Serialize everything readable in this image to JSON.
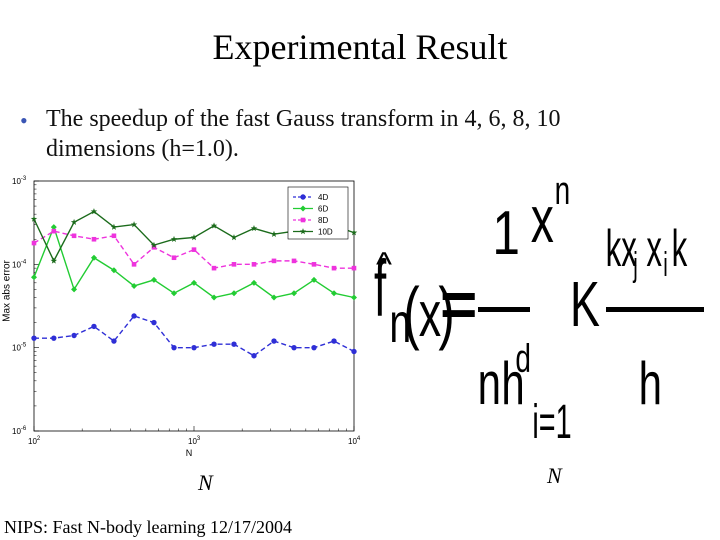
{
  "title": "Experimental Result",
  "bullet": {
    "line1": "The speedup of the fast Gauss transform in 4, 6, 8, 10",
    "line2": "dimensions (h=1.0)."
  },
  "chart_data": {
    "type": "line",
    "ylabel": "Max abs error",
    "xlabel": "N",
    "x_scale": "log",
    "y_scale": "log",
    "xlim": [
      100,
      10000
    ],
    "ylim": [
      1e-06,
      0.001
    ],
    "x_ticks": [
      {
        "base": "10",
        "exp": "2"
      },
      {
        "base": "10",
        "exp": "3"
      },
      {
        "base": "10",
        "exp": "4"
      }
    ],
    "y_ticks": [
      {
        "base": "10",
        "exp": "-3"
      },
      {
        "base": "10",
        "exp": "-4"
      },
      {
        "base": "10",
        "exp": "-5"
      },
      {
        "base": "10",
        "exp": "-6"
      }
    ],
    "legend_position": "top-right",
    "x": [
      100,
      133,
      178,
      237,
      316,
      422,
      562,
      750,
      1000,
      1334,
      1778,
      2371,
      3162,
      4217,
      5623,
      7499,
      10000
    ],
    "series": [
      {
        "name": "4D",
        "color": "#2f2fd6",
        "marker": "circle",
        "dash": "5,3",
        "values": [
          1.3e-05,
          1.3e-05,
          1.4e-05,
          1.8e-05,
          1.2e-05,
          2.4e-05,
          2e-05,
          1e-05,
          1e-05,
          1.1e-05,
          1.1e-05,
          8e-06,
          1.2e-05,
          1e-05,
          1e-05,
          1.2e-05,
          9e-06
        ]
      },
      {
        "name": "6D",
        "color": "#22cc33",
        "marker": "diamond",
        "dash": "",
        "values": [
          7e-05,
          0.00028,
          5e-05,
          0.00012,
          8.5e-05,
          5.5e-05,
          6.5e-05,
          4.5e-05,
          6e-05,
          4e-05,
          4.5e-05,
          6e-05,
          4e-05,
          4.5e-05,
          6.5e-05,
          4.5e-05,
          4e-05
        ]
      },
      {
        "name": "8D",
        "color": "#ee33dd",
        "marker": "square",
        "dash": "5,3",
        "values": [
          0.00018,
          0.00025,
          0.00022,
          0.0002,
          0.00022,
          0.0001,
          0.00016,
          0.00012,
          0.00015,
          9e-05,
          0.0001,
          0.0001,
          0.00011,
          0.00011,
          0.0001,
          9e-05,
          9e-05
        ]
      },
      {
        "name": "10D",
        "color": "#1b6b1b",
        "marker": "star",
        "dash": "",
        "values": [
          0.00035,
          0.00011,
          0.00032,
          0.00043,
          0.00028,
          0.0003,
          0.00017,
          0.0002,
          0.00021,
          0.00029,
          0.00021,
          0.00027,
          0.00023,
          0.00025,
          0.00026,
          0.00029,
          0.00024
        ]
      }
    ]
  },
  "formula": {
    "fhat": "f",
    "hat": "^",
    "sub_n": "n",
    "paren_open": "(",
    "x": "x",
    "paren_close": ")",
    "equals": "=",
    "one": "1",
    "denom_n": "n",
    "denom_h": "h",
    "denom_d": "d",
    "sum_x": "x",
    "sum_n": "n",
    "sum_i": "i=1",
    "kernel": "K",
    "num_kx": "kx",
    "num_j": "j",
    "num_xi": "x",
    "num_i": "i",
    "num_k": "k",
    "h": "h"
  },
  "n_label_left": "N",
  "n_label_right": "N",
  "footer": "NIPS: Fast N-body learning 12/17/2004"
}
